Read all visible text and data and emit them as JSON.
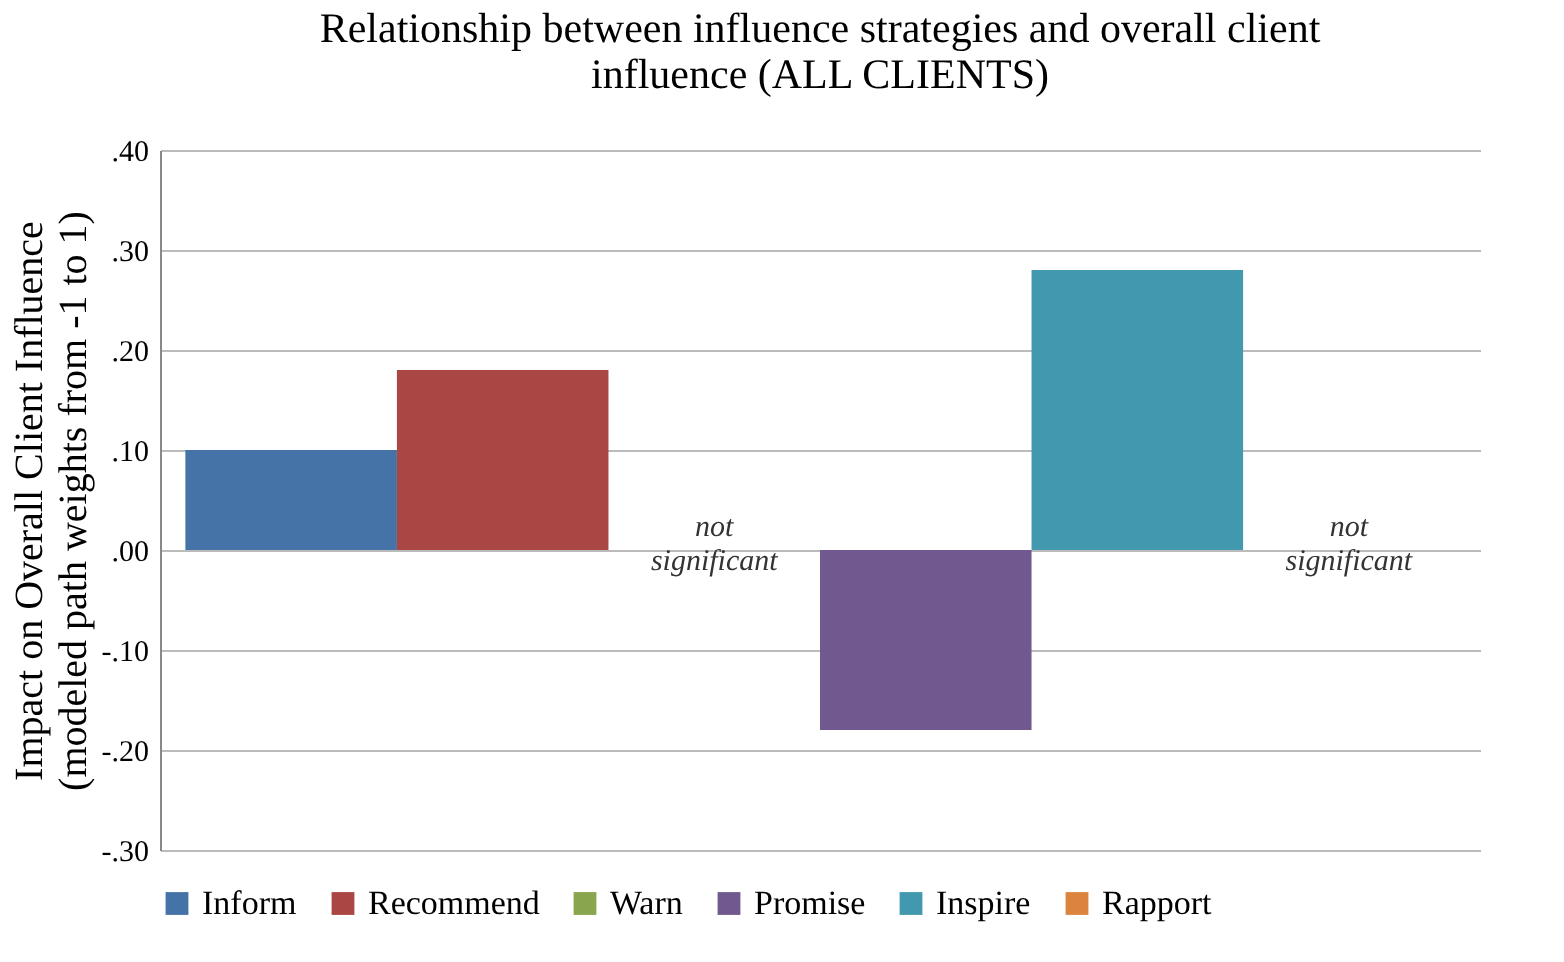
{
  "chart_data": {
    "type": "bar",
    "title": "Relationship between influence strategies and overall client influence  (ALL CLIENTS)",
    "ylabel": "Impact on Overall Client Influence",
    "subtitle": "(modeled path weights from -1 to 1)",
    "categories": [
      null
    ],
    "series": [
      {
        "name": "Inform",
        "color": "#4572a7",
        "values": [
          0.1
        ]
      },
      {
        "name": "Recommend",
        "color": "#aa4643",
        "values": [
          0.18
        ]
      },
      {
        "name": "Warn",
        "color": "#89a54e",
        "values": [
          null
        ]
      },
      {
        "name": "Promise",
        "color": "#71588f",
        "values": [
          -0.18
        ]
      },
      {
        "name": "Inspire",
        "color": "#4198af",
        "values": [
          0.28
        ]
      },
      {
        "name": "Rapport",
        "color": "#db843d",
        "values": [
          null
        ]
      }
    ],
    "annotations": [
      "not significant",
      "not significant"
    ],
    "ylim": [
      -0.3,
      0.4
    ],
    "yticks": [
      {
        "value": -0.3,
        "label": "-.30"
      },
      {
        "value": -0.2,
        "label": "-.20"
      },
      {
        "value": -0.1,
        "label": "-.10"
      },
      {
        "value": 0,
        "label": ".00"
      },
      {
        "value": 0.1,
        "label": ".10"
      },
      {
        "value": 0.2,
        "label": ".20"
      },
      {
        "value": 0.3,
        "label": ".30"
      },
      {
        "value": 0.4,
        "label": ".40"
      }
    ],
    "grid": "y",
    "legend": "bottom",
    "tick_labels": "y"
  }
}
